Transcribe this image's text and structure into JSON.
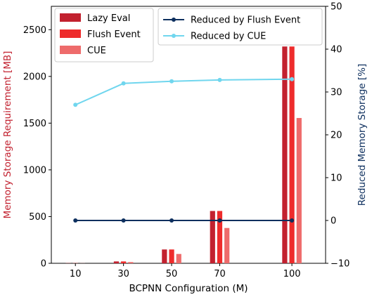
{
  "chart_data": {
    "type": "bar+line",
    "x": [
      10,
      30,
      50,
      70,
      100
    ],
    "xlabel": "BCPNN Configuration (M)",
    "ylabel_left": "Memory Storage Requirement [MB]",
    "ylabel_right": "Reduced Memory Storage [%]",
    "ylim_left": [
      0,
      2750
    ],
    "ylim_right": [
      -10,
      50
    ],
    "yticks_left": [
      0,
      500,
      1000,
      1500,
      2000,
      2500
    ],
    "yticks_right": [
      -10,
      0,
      10,
      20,
      30,
      40,
      50
    ],
    "xticks": [
      10,
      30,
      50,
      70,
      100
    ],
    "bar_series": [
      {
        "name": "Lazy Eval",
        "color": "#c2212f",
        "values": [
          2,
          20,
          148,
          560,
          2320
        ]
      },
      {
        "name": "Flush Event",
        "color": "#ee2c2c",
        "values": [
          2,
          20,
          148,
          560,
          2320
        ]
      },
      {
        "name": "CUE",
        "color": "#ee6b6b",
        "values": [
          1,
          13,
          100,
          378,
          1555
        ]
      }
    ],
    "line_series": [
      {
        "name": "Reduced by Flush Event",
        "color": "#0d2f5e",
        "values": [
          0,
          0,
          0,
          0,
          0
        ]
      },
      {
        "name": "Reduced by CUE",
        "color": "#70d6ee",
        "values": [
          27,
          32,
          32.5,
          32.8,
          33
        ]
      }
    ],
    "left_axis_color": "#c2212f",
    "right_axis_color": "#0d2f5e",
    "grid": false,
    "legend_left": "upper-left",
    "legend_right": "upper-center"
  }
}
